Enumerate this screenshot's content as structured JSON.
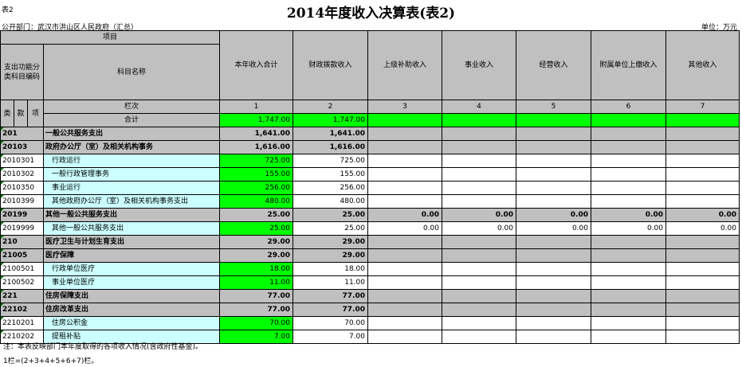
{
  "header": {
    "title": "2014年度收入决算表(表2)",
    "table_no": "表2",
    "department": "公开部门：武汉市洪山区人民政府（汇总）",
    "unit": "单位：万元"
  },
  "columns": {
    "item": "项目",
    "func_code": "支出功能分类科目编码",
    "subject_name": "科目名称",
    "row_label": "栏次",
    "lei": "类",
    "kuan": "款",
    "xiang": "项",
    "total_label": "合计",
    "values": [
      "本年收入合计",
      "财政拨款收入",
      "上级补助收入",
      "事业收入",
      "经营收入",
      "附属单位上缴收入",
      "其他收入"
    ],
    "numbers": [
      "1",
      "2",
      "3",
      "4",
      "5",
      "6",
      "7"
    ]
  },
  "total_row": [
    "1,747.00",
    "1,747.00",
    "",
    "",
    "",
    "",
    ""
  ],
  "rows": [
    {
      "code": "201",
      "name": "一般公共服务支出",
      "v": [
        "1,641.00",
        "1,641.00",
        "",
        "",
        "",
        "",
        ""
      ]
    },
    {
      "code": "20103",
      "name": "政府办公厅（室）及相关机构事务",
      "v": [
        "1,616.00",
        "1,616.00",
        "",
        "",
        "",
        "",
        ""
      ]
    },
    {
      "code": "2010301",
      "name": "行政运行",
      "v": [
        "725.00",
        "725.00",
        "",
        "",
        "",
        "",
        ""
      ]
    },
    {
      "code": "2010302",
      "name": "一般行政管理事务",
      "v": [
        "155.00",
        "155.00",
        "",
        "",
        "",
        "",
        ""
      ]
    },
    {
      "code": "2010350",
      "name": "事业运行",
      "v": [
        "256.00",
        "256.00",
        "",
        "",
        "",
        "",
        ""
      ]
    },
    {
      "code": "2010399",
      "name": "其他政府办公厅（室）及相关机构事务支出",
      "v": [
        "480.00",
        "480.00",
        "",
        "",
        "",
        "",
        ""
      ]
    },
    {
      "code": "20199",
      "name": "其他一般公共服务支出",
      "v": [
        "25.00",
        "25.00",
        "0.00",
        "0.00",
        "0.00",
        "0.00",
        "0.00"
      ]
    },
    {
      "code": "2019999",
      "name": "其他一般公共服务支出",
      "v": [
        "25.00",
        "25.00",
        "0.00",
        "0.00",
        "0.00",
        "0.00",
        "0.00"
      ]
    },
    {
      "code": "210",
      "name": "医疗卫生与计划生育支出",
      "v": [
        "29.00",
        "29.00",
        "",
        "",
        "",
        "",
        ""
      ]
    },
    {
      "code": "21005",
      "name": "医疗保障",
      "v": [
        "29.00",
        "29.00",
        "",
        "",
        "",
        "",
        ""
      ]
    },
    {
      "code": "2100501",
      "name": "行政单位医疗",
      "v": [
        "18.00",
        "18.00",
        "",
        "",
        "",
        "",
        ""
      ]
    },
    {
      "code": "2100502",
      "name": "事业单位医疗",
      "v": [
        "11.00",
        "11.00",
        "",
        "",
        "",
        "",
        ""
      ]
    },
    {
      "code": "221",
      "name": "住房保障支出",
      "v": [
        "77.00",
        "77.00",
        "",
        "",
        "",
        "",
        ""
      ]
    },
    {
      "code": "22102",
      "name": "住房改革支出",
      "v": [
        "77.00",
        "77.00",
        "",
        "",
        "",
        "",
        ""
      ]
    },
    {
      "code": "2210201",
      "name": "住房公积金",
      "v": [
        "70.00",
        "70.00",
        "",
        "",
        "",
        "",
        ""
      ]
    },
    {
      "code": "2210202",
      "name": "提租补贴",
      "v": [
        "7.00",
        "7.00",
        "",
        "",
        "",
        "",
        ""
      ]
    }
  ],
  "notes": {
    "note1": "注：本表反映部门本年度取得的各项收入情况(含政府性基金)。",
    "note2": "1栏=(2+3+4+5+6+7)栏。"
  },
  "colors": {
    "header_gray": "#c0c0c0",
    "total_green": "#00ff00",
    "detail_cyan": "#ccffff"
  }
}
